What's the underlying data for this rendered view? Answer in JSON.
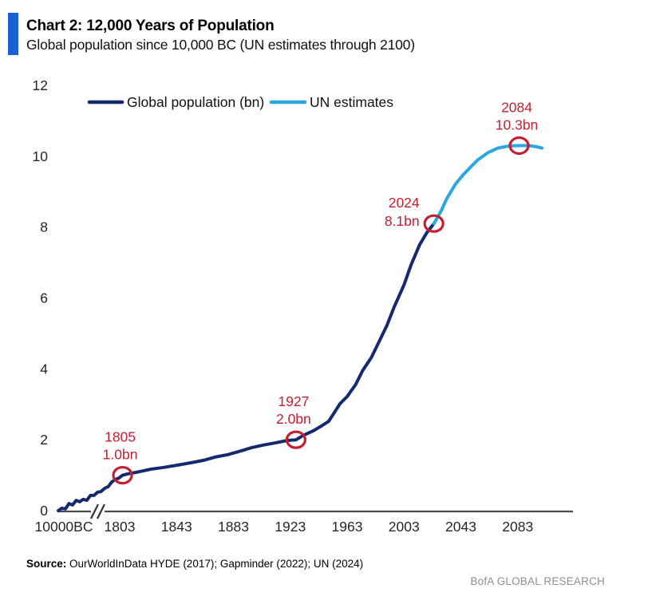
{
  "header": {
    "title": "Chart 2: 12,000 Years of Population",
    "subtitle": "Global population since 10,000 BC (UN estimates through 2100)",
    "accent_color": "#1a5fd4"
  },
  "legend": [
    {
      "label": "Global population (bn)",
      "color": "#152a6e"
    },
    {
      "label": "UN estimates",
      "color": "#29a8e0"
    }
  ],
  "chart_data": {
    "type": "line",
    "title": "Chart 2: 12,000 Years of Population",
    "xlabel": "",
    "ylabel": "",
    "ylim": [
      0,
      12
    ],
    "yticks": [
      0,
      2,
      4,
      6,
      8,
      10,
      12
    ],
    "xticks": [
      "10000BC",
      "1803",
      "1843",
      "1883",
      "1923",
      "1963",
      "2003",
      "2043",
      "2083"
    ],
    "axis_break_before": "1803",
    "grid": false,
    "legend_position": "top-left-inside",
    "series": [
      {
        "name": "Global population (bn)",
        "color": "#152a6e",
        "note": "compressed axis segment 10,000 BC to ~1800, values in bn",
        "compressed_values": [
          0.0,
          0.07,
          0.05,
          0.2,
          0.16,
          0.29,
          0.25,
          0.32,
          0.29,
          0.43,
          0.43,
          0.52,
          0.54,
          0.63,
          0.68,
          0.81,
          0.88,
          0.92,
          1.0
        ],
        "points": [
          [
            1805,
            1.0
          ],
          [
            1809,
            1.04
          ],
          [
            1817,
            1.1
          ],
          [
            1825,
            1.17
          ],
          [
            1834,
            1.22
          ],
          [
            1843,
            1.28
          ],
          [
            1853,
            1.35
          ],
          [
            1862,
            1.42
          ],
          [
            1870,
            1.51
          ],
          [
            1879,
            1.58
          ],
          [
            1887,
            1.67
          ],
          [
            1896,
            1.78
          ],
          [
            1904,
            1.85
          ],
          [
            1912,
            1.91
          ],
          [
            1921,
            1.98
          ],
          [
            1927,
            2.0
          ],
          [
            1932,
            2.12
          ],
          [
            1939,
            2.25
          ],
          [
            1945,
            2.39
          ],
          [
            1950,
            2.52
          ],
          [
            1954,
            2.77
          ],
          [
            1958,
            3.02
          ],
          [
            1963,
            3.22
          ],
          [
            1969,
            3.56
          ],
          [
            1974,
            3.96
          ],
          [
            1980,
            4.32
          ],
          [
            1985,
            4.73
          ],
          [
            1991,
            5.23
          ],
          [
            1996,
            5.74
          ],
          [
            2003,
            6.37
          ],
          [
            2008,
            6.94
          ],
          [
            2014,
            7.5
          ],
          [
            2019,
            7.84
          ],
          [
            2024,
            8.1
          ]
        ]
      },
      {
        "name": "UN estimates",
        "color": "#29a8e0",
        "points": [
          [
            2024,
            8.1
          ],
          [
            2029,
            8.45
          ],
          [
            2033,
            8.8
          ],
          [
            2039,
            9.2
          ],
          [
            2044,
            9.45
          ],
          [
            2050,
            9.7
          ],
          [
            2055,
            9.9
          ],
          [
            2062,
            10.1
          ],
          [
            2069,
            10.23
          ],
          [
            2077,
            10.29
          ],
          [
            2084,
            10.3
          ],
          [
            2091,
            10.3
          ],
          [
            2096,
            10.27
          ],
          [
            2100,
            10.23
          ]
        ]
      }
    ],
    "annotations": [
      {
        "year": 1805,
        "value": 1.0,
        "label_line1": "1805",
        "label_line2": "1.0bn",
        "anchor": "above"
      },
      {
        "year": 1927,
        "value": 2.0,
        "label_line1": "1927",
        "label_line2": "2.0bn",
        "anchor": "above"
      },
      {
        "year": 2024,
        "value": 8.1,
        "label_line1": "2024",
        "label_line2": "8.1bn",
        "anchor": "left"
      },
      {
        "year": 2084,
        "value": 10.3,
        "label_line1": "2084",
        "label_line2": "10.3bn",
        "anchor": "above"
      }
    ],
    "annotation_color": "#c41f30",
    "axis_color": "#4c4c4c",
    "tick_color": "#262626"
  },
  "source": {
    "label": "Source:",
    "text": " OurWorldInData HYDE (2017); Gapminder (2022); UN (2024)"
  },
  "footer": {
    "brand": "BofA GLOBAL RESEARCH"
  }
}
